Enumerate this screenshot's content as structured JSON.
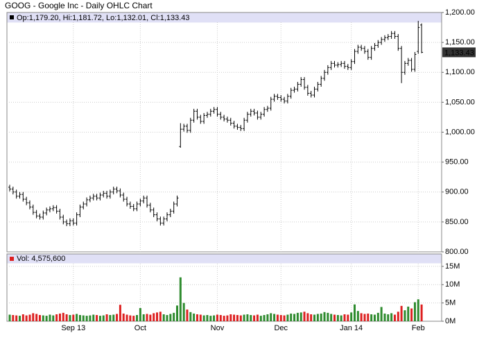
{
  "chart_data": [
    {
      "type": "ohlc",
      "title": "GOOG - Google Inc - Daily OHLC Chart",
      "subtitle": "Op:1,179.20, Hi:1,181.72, Lo:1,132.01, Cl:1,133.43",
      "color": "#000000",
      "open": [
        908,
        905,
        900,
        893,
        896,
        888,
        882,
        875,
        866,
        860,
        858,
        865,
        870,
        872,
        874,
        868,
        858,
        850,
        847,
        852,
        848,
        862,
        875,
        880,
        887,
        890,
        893,
        890,
        895,
        898,
        893,
        900,
        905,
        902,
        895,
        888,
        880,
        876,
        872,
        880,
        885,
        890,
        878,
        870,
        862,
        855,
        848,
        855,
        862,
        868,
        880,
        976,
        1005,
        1010,
        1003,
        1020,
        1035,
        1025,
        1018,
        1028,
        1030,
        1035,
        1038,
        1030,
        1025,
        1022,
        1020,
        1015,
        1010,
        1008,
        1006,
        1020,
        1030,
        1035,
        1032,
        1025,
        1030,
        1038,
        1040,
        1055,
        1060,
        1058,
        1055,
        1052,
        1060,
        1070,
        1072,
        1080,
        1088,
        1075,
        1065,
        1062,
        1072,
        1080,
        1090,
        1100,
        1108,
        1115,
        1112,
        1113,
        1115,
        1110,
        1108,
        1118,
        1135,
        1142,
        1140,
        1135,
        1125,
        1140,
        1145,
        1150,
        1155,
        1158,
        1160,
        1165,
        1160,
        1140,
        1100,
        1115,
        1120,
        1105,
        1135,
        1179.2
      ],
      "high": [
        912,
        909,
        904,
        900,
        900,
        892,
        886,
        879,
        870,
        864,
        869,
        874,
        876,
        878,
        878,
        872,
        862,
        854,
        856,
        856,
        866,
        879,
        884,
        891,
        894,
        897,
        897,
        899,
        902,
        902,
        904,
        909,
        909,
        906,
        899,
        892,
        884,
        880,
        884,
        889,
        894,
        894,
        882,
        874,
        866,
        859,
        859,
        866,
        872,
        884,
        894,
        1015,
        1014,
        1014,
        1024,
        1039,
        1039,
        1029,
        1032,
        1034,
        1039,
        1042,
        1042,
        1034,
        1029,
        1026,
        1024,
        1019,
        1014,
        1012,
        1024,
        1034,
        1039,
        1039,
        1036,
        1034,
        1042,
        1044,
        1059,
        1064,
        1064,
        1062,
        1059,
        1064,
        1074,
        1076,
        1084,
        1092,
        1092,
        1079,
        1069,
        1076,
        1084,
        1094,
        1104,
        1112,
        1119,
        1119,
        1117,
        1119,
        1119,
        1114,
        1122,
        1139,
        1146,
        1146,
        1144,
        1139,
        1144,
        1149,
        1154,
        1159,
        1162,
        1164,
        1169,
        1169,
        1164,
        1144,
        1119,
        1124,
        1124,
        1134,
        1186,
        1181.72
      ],
      "low": [
        901,
        896,
        889,
        889,
        884,
        878,
        871,
        862,
        856,
        854,
        854,
        861,
        866,
        868,
        864,
        854,
        846,
        843,
        843,
        844,
        844,
        858,
        871,
        876,
        883,
        886,
        886,
        886,
        891,
        889,
        889,
        896,
        898,
        891,
        884,
        876,
        872,
        868,
        868,
        876,
        881,
        874,
        866,
        858,
        851,
        844,
        844,
        851,
        858,
        864,
        876,
        974,
        1001,
        999,
        999,
        1016,
        1021,
        1014,
        1014,
        1024,
        1026,
        1031,
        1026,
        1021,
        1018,
        1016,
        1011,
        1006,
        1004,
        1002,
        1002,
        1016,
        1026,
        1028,
        1021,
        1021,
        1026,
        1034,
        1036,
        1051,
        1054,
        1051,
        1048,
        1048,
        1056,
        1066,
        1068,
        1076,
        1071,
        1061,
        1058,
        1058,
        1068,
        1076,
        1086,
        1096,
        1104,
        1108,
        1108,
        1109,
        1106,
        1104,
        1104,
        1114,
        1131,
        1136,
        1131,
        1121,
        1121,
        1136,
        1141,
        1146,
        1151,
        1154,
        1156,
        1156,
        1136,
        1082,
        1096,
        1111,
        1101,
        1101,
        1131,
        1132.01
      ],
      "close": [
        905,
        900,
        893,
        896,
        888,
        882,
        875,
        866,
        860,
        858,
        865,
        870,
        872,
        874,
        868,
        858,
        850,
        847,
        852,
        848,
        862,
        875,
        880,
        887,
        890,
        893,
        890,
        895,
        898,
        893,
        900,
        905,
        902,
        895,
        888,
        880,
        876,
        872,
        880,
        885,
        890,
        878,
        870,
        862,
        855,
        848,
        855,
        862,
        868,
        880,
        890,
        1005,
        1010,
        1003,
        1020,
        1035,
        1025,
        1018,
        1028,
        1030,
        1035,
        1038,
        1030,
        1025,
        1022,
        1020,
        1015,
        1010,
        1008,
        1006,
        1020,
        1030,
        1035,
        1032,
        1025,
        1030,
        1038,
        1040,
        1055,
        1060,
        1058,
        1055,
        1052,
        1060,
        1070,
        1072,
        1080,
        1088,
        1075,
        1065,
        1062,
        1072,
        1080,
        1090,
        1100,
        1108,
        1115,
        1112,
        1113,
        1115,
        1110,
        1108,
        1118,
        1135,
        1142,
        1140,
        1135,
        1125,
        1140,
        1145,
        1150,
        1155,
        1158,
        1160,
        1165,
        1160,
        1140,
        1100,
        1115,
        1120,
        1105,
        1130,
        1175,
        1133.43
      ],
      "last_price": {
        "value": 1133.43,
        "label": "1,133.43"
      },
      "ylim": [
        800,
        1200
      ],
      "yticks": [
        {
          "value": 800,
          "label": "800.00"
        },
        {
          "value": 850,
          "label": "850.00"
        },
        {
          "value": 900,
          "label": "900.00"
        },
        {
          "value": 950,
          "label": "950.00"
        },
        {
          "value": 1000,
          "label": "1,000.00"
        },
        {
          "value": 1050,
          "label": "1,050.00"
        },
        {
          "value": 1100,
          "label": "1,100.00"
        },
        {
          "value": 1150,
          "label": "1,150.00"
        },
        {
          "value": 1200,
          "label": "1,200.00"
        }
      ],
      "grid": true
    },
    {
      "type": "bar",
      "subtitle": "Vol: 4,575,600",
      "up_color": "#2e8b2e",
      "down_color": "#dd2020",
      "categories": [
        null,
        null,
        null,
        null,
        null,
        null,
        null,
        null,
        null,
        null,
        null,
        null,
        null,
        null,
        null,
        null,
        null,
        null,
        null,
        "Sep 13",
        null,
        null,
        null,
        null,
        null,
        null,
        null,
        null,
        null,
        null,
        null,
        null,
        null,
        null,
        null,
        null,
        null,
        null,
        null,
        "Oct",
        null,
        null,
        null,
        null,
        null,
        null,
        null,
        null,
        null,
        null,
        null,
        null,
        null,
        null,
        null,
        null,
        null,
        null,
        null,
        null,
        null,
        null,
        "Nov",
        null,
        null,
        null,
        null,
        null,
        null,
        null,
        null,
        null,
        null,
        null,
        null,
        null,
        null,
        null,
        null,
        null,
        null,
        "Dec",
        null,
        null,
        null,
        null,
        null,
        null,
        null,
        null,
        null,
        null,
        null,
        null,
        null,
        null,
        null,
        null,
        null,
        null,
        null,
        null,
        "Jan 14",
        null,
        null,
        null,
        null,
        null,
        null,
        null,
        null,
        null,
        null,
        null,
        null,
        null,
        null,
        null,
        null,
        null,
        null,
        null,
        "Feb",
        null
      ],
      "values": [
        1.8,
        1.7,
        1.6,
        1.5,
        1.9,
        1.6,
        1.8,
        2.2,
        2.0,
        1.7,
        1.6,
        1.5,
        1.8,
        1.6,
        1.9,
        2.1,
        2.3,
        1.9,
        1.7,
        1.8,
        2.0,
        1.7,
        1.6,
        1.5,
        1.6,
        1.8,
        1.7,
        1.5,
        1.6,
        1.9,
        1.7,
        1.8,
        2.0,
        4.5,
        2.1,
        1.8,
        1.6,
        1.5,
        1.7,
        3.6,
        1.9,
        2.0,
        1.8,
        2.2,
        2.4,
        2.6,
        1.9,
        1.7,
        2.0,
        2.3,
        4.3,
        12.0,
        5.0,
        3.2,
        2.5,
        2.1,
        1.9,
        1.8,
        1.6,
        1.7,
        1.5,
        1.6,
        1.8,
        1.7,
        1.5,
        1.6,
        1.9,
        1.8,
        1.7,
        1.6,
        1.8,
        1.9,
        1.7,
        1.6,
        1.8,
        1.5,
        1.7,
        1.9,
        2.2,
        2.0,
        1.8,
        1.7,
        1.6,
        1.8,
        2.1,
        2.0,
        2.3,
        2.4,
        2.6,
        2.2,
        1.9,
        1.8,
        2.0,
        2.1,
        2.5,
        2.3,
        2.0,
        1.8,
        1.7,
        1.6,
        1.9,
        1.8,
        2.4,
        4.6,
        2.8,
        2.2,
        2.0,
        2.1,
        1.9,
        1.8,
        2.3,
        3.9,
        2.1,
        1.9,
        2.2,
        1.8,
        2.6,
        4.2,
        3.0,
        4.0,
        3.5,
        5.2,
        6.0,
        4.5756
      ],
      "ylim": [
        0,
        18.4
      ],
      "yticks": [
        {
          "value": 0,
          "label": "0M"
        },
        {
          "value": 5,
          "label": "5M"
        },
        {
          "value": 10,
          "label": "10M"
        },
        {
          "value": 15,
          "label": "15M"
        }
      ],
      "grid": true
    }
  ]
}
